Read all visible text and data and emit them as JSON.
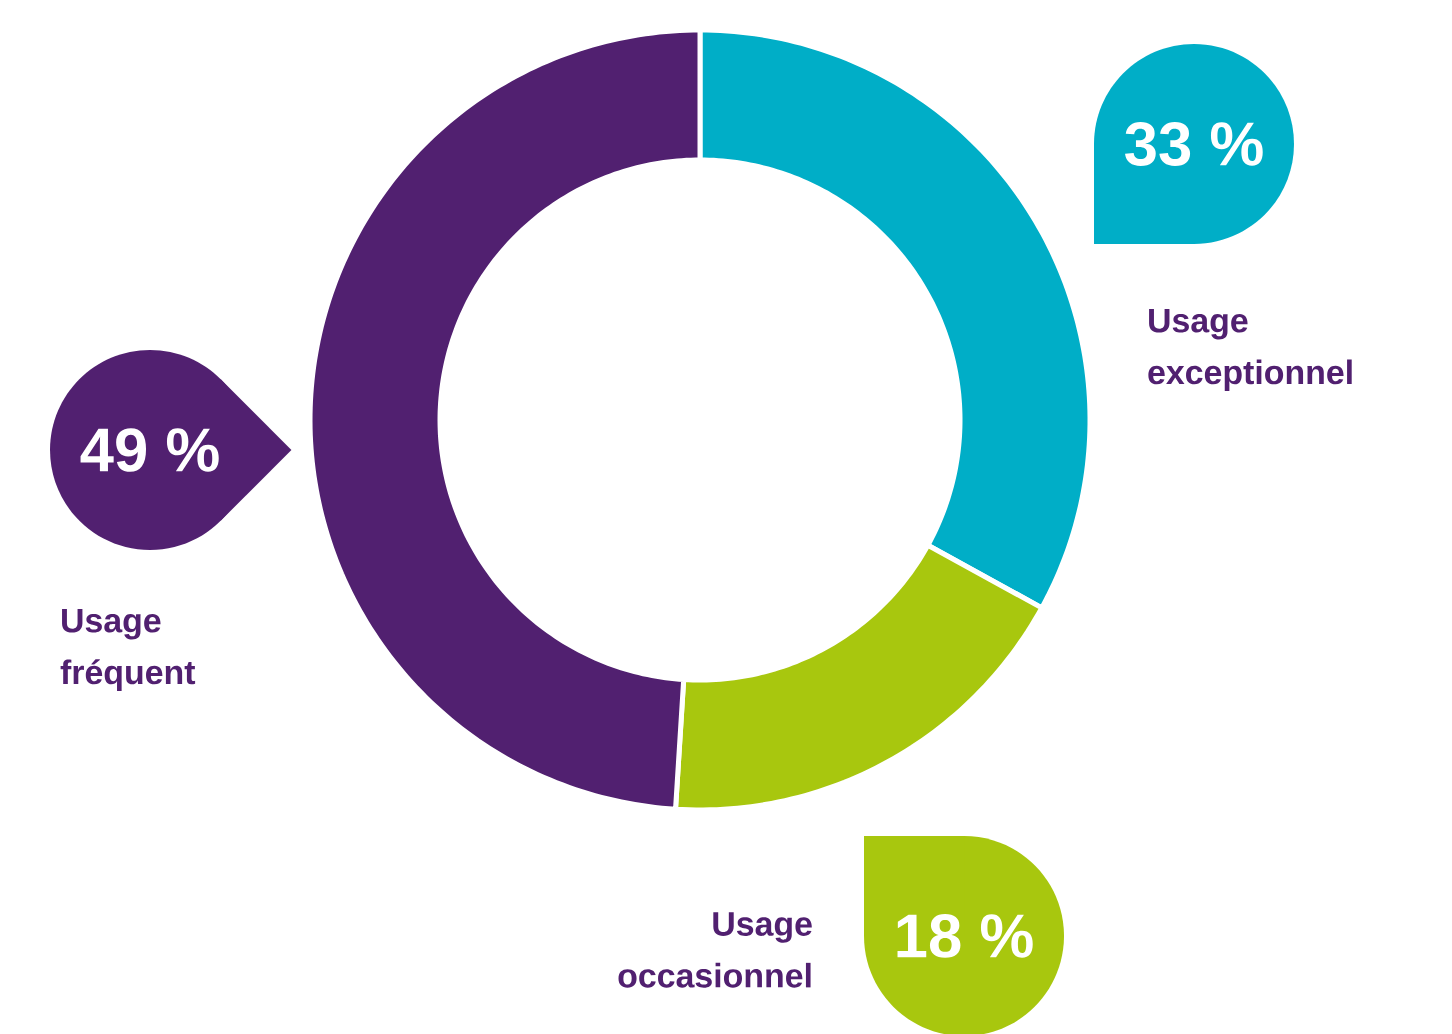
{
  "chart_data": {
    "type": "donut",
    "categories": [
      "Usage exceptionnel",
      "Usage occasionnel",
      "Usage fréquent"
    ],
    "values": [
      33,
      18,
      49
    ],
    "colors": [
      "#00aec7",
      "#a8c70e",
      "#512070"
    ],
    "value_labels": [
      "33 %",
      "18 %",
      "49 %"
    ]
  }
}
